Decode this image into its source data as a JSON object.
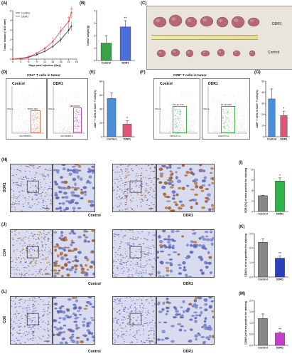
{
  "panels": {
    "A": {
      "label": "(A)",
      "chart_data": {
        "type": "line",
        "ylabel": "Tumor Volume (×100 mm³)",
        "xlabel": "Days post injection (Day)",
        "x": [
          0,
          3,
          6,
          9,
          12,
          15,
          18,
          21,
          22
        ],
        "xticks": [
          "0",
          "3",
          "6",
          "9",
          "12",
          "15",
          "18",
          "21",
          "24"
        ],
        "yticks": [
          "0",
          "1",
          "2",
          "3",
          "4",
          "5"
        ],
        "ylim": [
          0,
          5
        ],
        "series": [
          {
            "name": "Control",
            "color": "#333333",
            "values": [
              0,
              0.05,
              0.2,
              0.45,
              0.8,
              1.3,
              2.0,
              3.0,
              3.4
            ]
          },
          {
            "name": "DDR1",
            "color": "#e23b3b",
            "values": [
              0,
              0.07,
              0.25,
              0.6,
              1.1,
              1.8,
              2.9,
              3.9,
              4.8
            ]
          }
        ],
        "annotations": [
          "*",
          "*",
          "**",
          "**"
        ],
        "legend": "top-left"
      }
    },
    "B": {
      "label": "(B)",
      "chart_data": {
        "type": "bar",
        "ylabel": "Tumor weight (g)",
        "categories": [
          "Control",
          "DDR1"
        ],
        "values": [
          1.4,
          2.7
        ],
        "errors": [
          0.6,
          0.5
        ],
        "colors": [
          "#3aa34a",
          "#4a6fd8"
        ],
        "yticks": [
          "0",
          "1",
          "2",
          "3",
          "4"
        ],
        "ylim": [
          0,
          4
        ],
        "significance": "**"
      }
    },
    "C": {
      "label": "(C)",
      "top_label": "DDR1",
      "bottom_label": "Control"
    },
    "D": {
      "label": "(D)",
      "title": "CD4⁺ T cells in tumor",
      "plots": [
        {
          "name": "Control",
          "gate": "PA007.59%",
          "xlabel": "CD4 PB450-A",
          "ylabel": "SSC-A"
        },
        {
          "name": "DDR1",
          "gate": "PB018.05%",
          "xlabel": "CD4 PB450-A",
          "ylabel": "SSC-A"
        }
      ]
    },
    "E": {
      "label": "(E)",
      "chart_data": {
        "type": "bar",
        "ylabel": "CD4⁺ T cells in CD3⁺ T cells(%)",
        "categories": [
          "Control",
          "DDR1"
        ],
        "values": [
          55,
          18
        ],
        "errors": [
          8,
          5
        ],
        "colors": [
          "#4b8fd8",
          "#e2557a"
        ],
        "yticks": [
          "0",
          "20",
          "40",
          "60",
          "80"
        ],
        "ylim": [
          0,
          80
        ],
        "significance": "*"
      }
    },
    "F": {
      "label": "(F)",
      "title": "CD8⁺ T cells in tumor",
      "plots": [
        {
          "name": "Control",
          "gate": "P12 01.77%",
          "xlabel": "CD8 FITC-A",
          "ylabel": "SSC-A"
        },
        {
          "name": "DDR1",
          "gate": "P13 00.68%",
          "xlabel": "CD8 FITC-A",
          "ylabel": "SSC-A"
        }
      ]
    },
    "G": {
      "label": "(G)",
      "chart_data": {
        "type": "bar",
        "ylabel": "CD8⁺ T cells in CD3⁺ T cells(%)",
        "categories": [
          "Control",
          "DDR1"
        ],
        "values": [
          34,
          19
        ],
        "errors": [
          9,
          4
        ],
        "colors": [
          "#4b8fd8",
          "#e2557a"
        ],
        "yticks": [
          "0",
          "10",
          "20",
          "30",
          "40",
          "50"
        ],
        "ylim": [
          0,
          50
        ],
        "significance": "*"
      }
    },
    "H": {
      "label": "(H)",
      "row_label": "DDR1",
      "captions": [
        "Control",
        "DDR1"
      ]
    },
    "I": {
      "label": "(I)",
      "chart_data": {
        "type": "bar",
        "ylabel": "DDR1(%) of area positive for staining",
        "categories": [
          "Control",
          "DDR1"
        ],
        "values": [
          3.0,
          5.8
        ],
        "errors": [
          0.1,
          0.6
        ],
        "colors": [
          "#888888",
          "#2fb24a"
        ],
        "yticks": [
          "0",
          "2",
          "4",
          "6",
          "8"
        ],
        "ylim": [
          0,
          8
        ],
        "significance": "*"
      }
    },
    "J": {
      "label": "(J)",
      "row_label": "CD4",
      "captions": [
        "Control",
        "DDR1"
      ]
    },
    "K": {
      "label": "(K)",
      "chart_data": {
        "type": "bar",
        "ylabel": "CD4(%) of area positive for staining",
        "categories": [
          "Control",
          "DDR1"
        ],
        "values": [
          2.4,
          1.3
        ],
        "errors": [
          0.25,
          0.15
        ],
        "colors": [
          "#888888",
          "#2c3fbf"
        ],
        "yticks": [
          "0.0",
          "1.0",
          "2.0",
          "3.0"
        ],
        "ylim": [
          0,
          3
        ],
        "significance": "**"
      }
    },
    "L": {
      "label": "(L)",
      "row_label": "CD8",
      "captions": [
        "Control",
        "DDR1"
      ]
    },
    "M": {
      "label": "(M)",
      "chart_data": {
        "type": "bar",
        "ylabel": "CD8(%) of area positive for staining",
        "categories": [
          "Control",
          "DDR1"
        ],
        "values": [
          1.2,
          0.55
        ],
        "errors": [
          0.2,
          0.05
        ],
        "colors": [
          "#888888",
          "#c23fc9"
        ],
        "yticks": [
          "0.0",
          "0.5",
          "1.0",
          "1.5",
          "2.0"
        ],
        "ylim": [
          0,
          2
        ],
        "significance": "**"
      }
    }
  }
}
